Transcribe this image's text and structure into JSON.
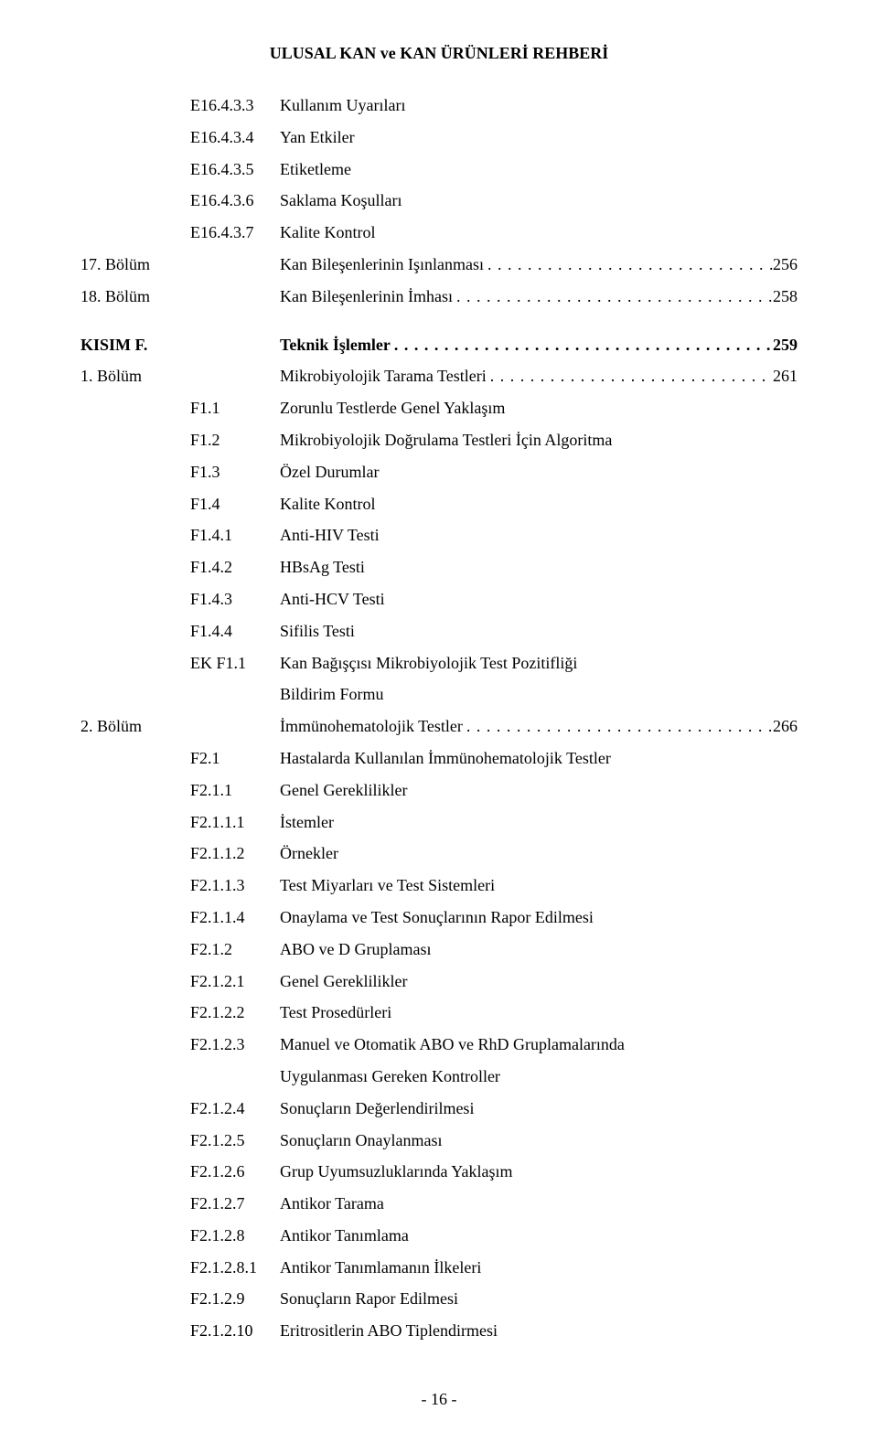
{
  "headerTitle": "ULUSAL KAN ve KAN ÜRÜNLERİ REHBERİ",
  "footerPage": "- 16 -",
  "dots": " . . . . . . . . . . . . . . . . . . . . . . . . . . . . . . . . . . . . . . . . . . . . . . . . . . . . . . . . . . . . . . . . . . . . . . . . . . . . . . . . . . . . . . . .",
  "entries": [
    {
      "col1": "",
      "col2": "E16.4.3.3",
      "text": "Kullanım Uyarıları",
      "page": ""
    },
    {
      "col1": "",
      "col2": "E16.4.3.4",
      "text": "Yan Etkiler",
      "page": ""
    },
    {
      "col1": "",
      "col2": "E16.4.3.5",
      "text": "Etiketleme",
      "page": ""
    },
    {
      "col1": "",
      "col2": "E16.4.3.6",
      "text": "Saklama Koşulları",
      "page": ""
    },
    {
      "col1": "",
      "col2": "E16.4.3.7",
      "text": "Kalite Kontrol",
      "page": ""
    },
    {
      "col1": "17. Bölüm",
      "col2": "",
      "text": "Kan Bileşenlerinin Işınlanması",
      "page": "256"
    },
    {
      "col1": "18. Bölüm",
      "col2": "",
      "text": "Kan Bileşenlerinin İmhası",
      "page": "258"
    },
    {
      "spacer": true
    },
    {
      "col1": "KISIM F.",
      "col2": "",
      "text": "Teknik İşlemler",
      "page": "259",
      "bold": true
    },
    {
      "col1": "1. Bölüm",
      "col2": "",
      "text": "Mikrobiyolojik Tarama Testleri",
      "page": "261"
    },
    {
      "col1": "",
      "col2": "F1.1",
      "text": "Zorunlu Testlerde Genel Yaklaşım",
      "page": ""
    },
    {
      "col1": "",
      "col2": "F1.2",
      "text": "Mikrobiyolojik Doğrulama Testleri İçin Algoritma",
      "page": ""
    },
    {
      "col1": "",
      "col2": "F1.3",
      "text": "Özel Durumlar",
      "page": ""
    },
    {
      "col1": "",
      "col2": "F1.4",
      "text": "Kalite Kontrol",
      "page": ""
    },
    {
      "col1": "",
      "col2": "F1.4.1",
      "text": "Anti-HIV Testi",
      "page": ""
    },
    {
      "col1": "",
      "col2": "F1.4.2",
      "text": "HBsAg Testi",
      "page": ""
    },
    {
      "col1": "",
      "col2": "F1.4.3",
      "text": "Anti-HCV Testi",
      "page": ""
    },
    {
      "col1": "",
      "col2": "F1.4.4",
      "text": "Sifilis Testi",
      "page": ""
    },
    {
      "col1": "",
      "col2": "EK F1.1",
      "text": "Kan Bağışçısı Mikrobiyolojik Test Pozitifliği",
      "page": ""
    },
    {
      "col1": "",
      "col2": "",
      "text": "Bildirim Formu",
      "page": ""
    },
    {
      "col1": "2. Bölüm",
      "col2": "",
      "text": "İmmünohematolojik Testler",
      "page": "266"
    },
    {
      "col1": "",
      "col2": "F2.1",
      "text": "Hastalarda Kullanılan İmmünohematolojik Testler",
      "page": ""
    },
    {
      "col1": "",
      "col2": "F2.1.1",
      "text": "Genel Gereklilikler",
      "page": ""
    },
    {
      "col1": "",
      "col2": "F2.1.1.1",
      "text": "İstemler",
      "page": ""
    },
    {
      "col1": "",
      "col2": "F2.1.1.2",
      "text": "Örnekler",
      "page": ""
    },
    {
      "col1": "",
      "col2": "F2.1.1.3",
      "text": "Test Miyarları ve Test Sistemleri",
      "page": ""
    },
    {
      "col1": "",
      "col2": "F2.1.1.4",
      "text": "Onaylama ve Test Sonuçlarının Rapor Edilmesi",
      "page": ""
    },
    {
      "col1": "",
      "col2": "F2.1.2",
      "text": "ABO ve D Gruplaması",
      "page": ""
    },
    {
      "col1": "",
      "col2": "F2.1.2.1",
      "text": "Genel Gereklilikler",
      "page": ""
    },
    {
      "col1": "",
      "col2": "F2.1.2.2",
      "text": "Test Prosedürleri",
      "page": ""
    },
    {
      "col1": "",
      "col2": "F2.1.2.3",
      "text": "Manuel ve Otomatik ABO ve RhD Gruplamalarında",
      "page": ""
    },
    {
      "col1": "",
      "col2": "",
      "text": "Uygulanması Gereken Kontroller",
      "page": ""
    },
    {
      "col1": "",
      "col2": "F2.1.2.4",
      "text": "Sonuçların Değerlendirilmesi",
      "page": ""
    },
    {
      "col1": "",
      "col2": "F2.1.2.5",
      "text": "Sonuçların Onaylanması",
      "page": ""
    },
    {
      "col1": "",
      "col2": "F2.1.2.6",
      "text": "Grup Uyumsuzluklarında Yaklaşım",
      "page": ""
    },
    {
      "col1": "",
      "col2": "F2.1.2.7",
      "text": "Antikor Tarama",
      "page": ""
    },
    {
      "col1": "",
      "col2": "F2.1.2.8",
      "text": "Antikor Tanımlama",
      "page": ""
    },
    {
      "col1": "",
      "col2": "F2.1.2.8.1",
      "text": "Antikor Tanımlamanın İlkeleri",
      "page": ""
    },
    {
      "col1": "",
      "col2": "F2.1.2.9",
      "text": "Sonuçların Rapor Edilmesi",
      "page": ""
    },
    {
      "col1": "",
      "col2": "F2.1.2.10",
      "text": "Eritrositlerin ABO Tiplendirmesi",
      "page": ""
    }
  ]
}
